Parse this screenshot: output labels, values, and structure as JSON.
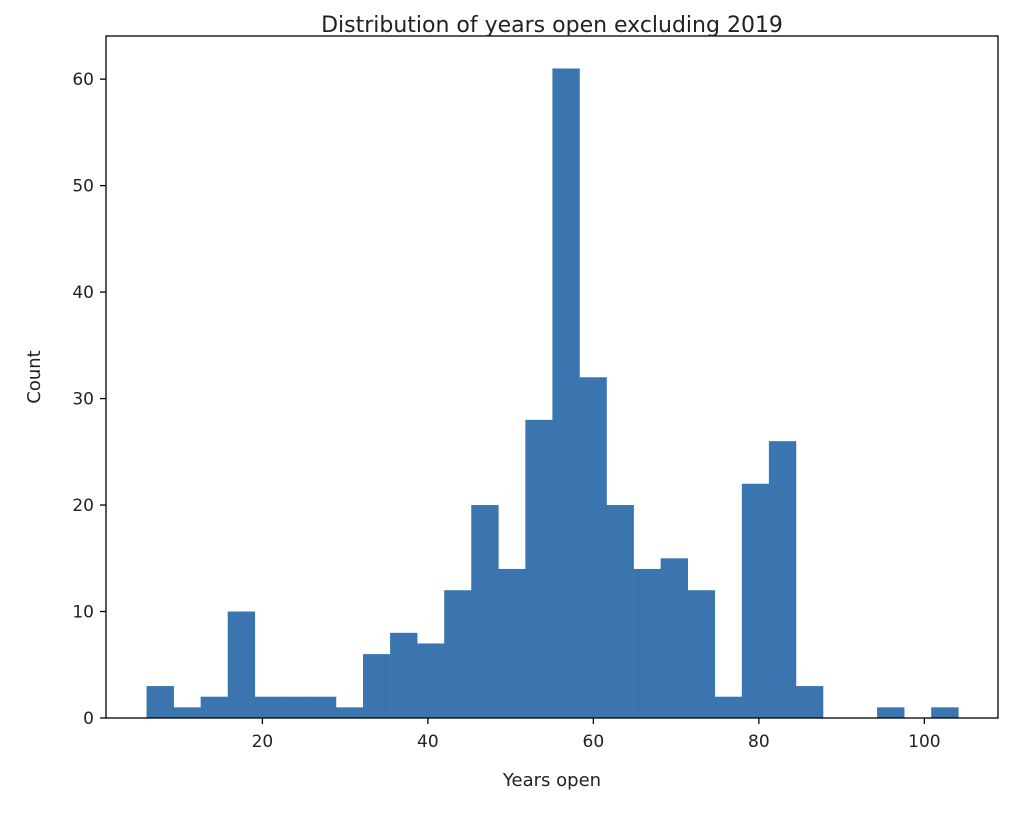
{
  "chart_data": {
    "type": "bar",
    "title": "Distribution of years open excluding 2019",
    "xlabel": "Years open",
    "ylabel": "Count",
    "bar_color": "#3a75af",
    "xlim": [
      1.1,
      108.9
    ],
    "ylim": [
      0,
      64.05
    ],
    "x_ticks": [
      20,
      40,
      60,
      80,
      100
    ],
    "y_ticks": [
      0,
      10,
      20,
      30,
      40,
      50,
      60
    ],
    "bin_start": 6,
    "bin_width": 3.27,
    "counts": [
      3,
      1,
      2,
      10,
      2,
      2,
      2,
      1,
      6,
      8,
      7,
      12,
      20,
      14,
      28,
      61,
      32,
      20,
      14,
      15,
      12,
      2,
      22,
      26,
      3,
      0,
      0,
      1,
      0,
      1
    ],
    "grid": false,
    "legend": "none"
  }
}
